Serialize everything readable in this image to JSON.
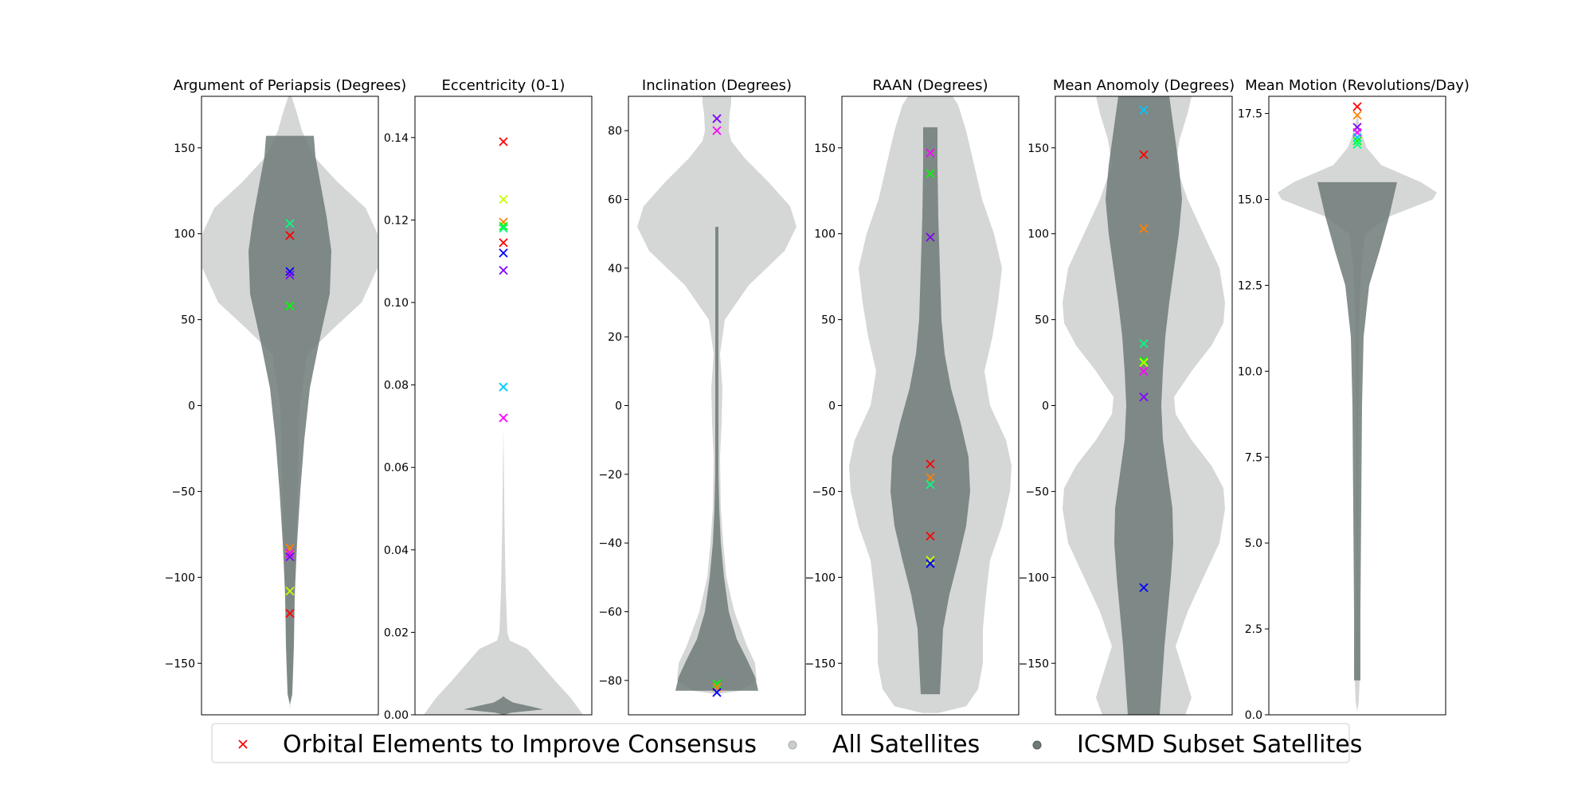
{
  "colors": {
    "all_satellites": "#c9cdcb",
    "icsmd_subset": "#6f7a78",
    "markers": [
      "#ff0000",
      "#ff8000",
      "#c8ff00",
      "#00ff00",
      "#00ff80",
      "#00c8ff",
      "#0000ff",
      "#8000ff",
      "#ff00ff"
    ]
  },
  "legend": {
    "orbital": "Orbital Elements to Improve Consensus",
    "all": "All Satellites",
    "subset": "ICSMD Subset Satellites"
  },
  "chart_data": [
    {
      "type": "violin",
      "title": "Argument of Periapsis (Degrees)",
      "ylim": [
        -180,
        180
      ],
      "yticks": [
        -150,
        -100,
        -50,
        0,
        50,
        100,
        150
      ],
      "tick_labels": [
        "−150",
        "−100",
        "−50",
        "0",
        "50",
        "100",
        "150"
      ],
      "all_satellites_range": [
        -177,
        180
      ],
      "icsmd_subset_range": [
        -174,
        157
      ],
      "markers": [
        {
          "y": 106,
          "color": "#00ff80"
        },
        {
          "y": 99,
          "color": "#ff0000"
        },
        {
          "y": 78,
          "color": "#0000ff"
        },
        {
          "y": 76,
          "color": "#8000ff"
        },
        {
          "y": 58,
          "color": "#00ff00"
        },
        {
          "y": -83,
          "color": "#ff8000"
        },
        {
          "y": -86,
          "color": "#ff00ff"
        },
        {
          "y": -88,
          "color": "#8000ff"
        },
        {
          "y": -108,
          "color": "#c8ff00"
        },
        {
          "y": -121,
          "color": "#ff0000"
        }
      ]
    },
    {
      "type": "violin",
      "title": "Eccentricity (0-1)",
      "ylim": [
        0,
        0.15
      ],
      "yticks": [
        0,
        0.02,
        0.04,
        0.06,
        0.08,
        0.1,
        0.12,
        0.14
      ],
      "tick_labels": [
        "0.00",
        "0.02",
        "0.04",
        "0.06",
        "0.08",
        "0.10",
        "0.12",
        "0.14"
      ],
      "all_satellites_range": [
        0,
        0.07
      ],
      "icsmd_subset_range": [
        0,
        0.004
      ],
      "markers": [
        {
          "y": 0.139,
          "color": "#ff0000"
        },
        {
          "y": 0.125,
          "color": "#c8ff00"
        },
        {
          "y": 0.1195,
          "color": "#ff8000"
        },
        {
          "y": 0.1185,
          "color": "#00ff00"
        },
        {
          "y": 0.118,
          "color": "#00ff80"
        },
        {
          "y": 0.1145,
          "color": "#ff0000"
        },
        {
          "y": 0.112,
          "color": "#0000ff"
        },
        {
          "y": 0.1078,
          "color": "#8000ff"
        },
        {
          "y": 0.0795,
          "color": "#00c8ff"
        },
        {
          "y": 0.072,
          "color": "#ff00ff"
        }
      ]
    },
    {
      "type": "violin",
      "title": "Inclination (Degrees)",
      "ylim": [
        -90,
        90
      ],
      "yticks": [
        -80,
        -60,
        -40,
        -20,
        0,
        20,
        40,
        60,
        80
      ],
      "tick_labels": [
        "−80",
        "−60",
        "−40",
        "−20",
        "0",
        "20",
        "40",
        "60",
        "80"
      ],
      "all_satellites_range": [
        -84,
        90
      ],
      "icsmd_subset_range": [
        -83,
        52
      ],
      "markers": [
        {
          "y": 83.5,
          "color": "#8000ff"
        },
        {
          "y": 80,
          "color": "#ff00ff"
        },
        {
          "y": -81,
          "color": "#00ff00"
        },
        {
          "y": -82,
          "color": "#ff8000"
        },
        {
          "y": -83.5,
          "color": "#0000ff"
        }
      ]
    },
    {
      "type": "violin",
      "title": "RAAN (Degrees)",
      "ylim": [
        -180,
        180
      ],
      "yticks": [
        -150,
        -100,
        -50,
        0,
        50,
        100,
        150
      ],
      "tick_labels": [
        "−150",
        "−100",
        "−50",
        "0",
        "50",
        "100",
        "150"
      ],
      "all_satellites_range": [
        -179,
        180
      ],
      "icsmd_subset_range": [
        -168,
        162
      ],
      "markers": [
        {
          "y": 147,
          "color": "#ff00ff"
        },
        {
          "y": 135,
          "color": "#00ff00"
        },
        {
          "y": 98,
          "color": "#8000ff"
        },
        {
          "y": -34,
          "color": "#ff0000"
        },
        {
          "y": -42,
          "color": "#ff8000"
        },
        {
          "y": -46,
          "color": "#00ff80"
        },
        {
          "y": -76,
          "color": "#ff0000"
        },
        {
          "y": -90,
          "color": "#c8ff00"
        },
        {
          "y": -92,
          "color": "#0000ff"
        }
      ]
    },
    {
      "type": "violin",
      "title": "Mean Anomoly (Degrees)",
      "ylim": [
        -180,
        180
      ],
      "yticks": [
        -150,
        -100,
        -50,
        0,
        50,
        100,
        150
      ],
      "tick_labels": [
        "−150",
        "−100",
        "−50",
        "0",
        "50",
        "100",
        "150"
      ],
      "all_satellites_range": [
        -180,
        180
      ],
      "icsmd_subset_range": [
        -180,
        180
      ],
      "markers": [
        {
          "y": 172,
          "color": "#00c8ff"
        },
        {
          "y": 146,
          "color": "#ff0000"
        },
        {
          "y": 103,
          "color": "#ff8000"
        },
        {
          "y": 36,
          "color": "#00ff80"
        },
        {
          "y": 26,
          "color": "#00ff00"
        },
        {
          "y": 25,
          "color": "#c8ff00"
        },
        {
          "y": 20,
          "color": "#ff00ff"
        },
        {
          "y": 5,
          "color": "#8000ff"
        },
        {
          "y": -106,
          "color": "#0000ff"
        }
      ]
    },
    {
      "type": "violin",
      "title": "Mean Motion (Revolutions/Day)",
      "ylim": [
        0,
        18
      ],
      "yticks": [
        0,
        2.5,
        5,
        7.5,
        10,
        12.5,
        15,
        17.5
      ],
      "tick_labels": [
        "0.0",
        "2.5",
        "5.0",
        "7.5",
        "10.0",
        "12.5",
        "15.0",
        "17.5"
      ],
      "all_satellites_range": [
        0.1,
        17.5
      ],
      "icsmd_subset_range": [
        1,
        15.5
      ],
      "markers": [
        {
          "y": 17.7,
          "color": "#ff0000"
        },
        {
          "y": 17.45,
          "color": "#ff8000"
        },
        {
          "y": 17.1,
          "color": "#8000ff"
        },
        {
          "y": 16.95,
          "color": "#ff00ff"
        },
        {
          "y": 16.8,
          "color": "#00c8ff"
        },
        {
          "y": 16.7,
          "color": "#00ff00"
        },
        {
          "y": 16.6,
          "color": "#00ff80"
        }
      ]
    }
  ]
}
